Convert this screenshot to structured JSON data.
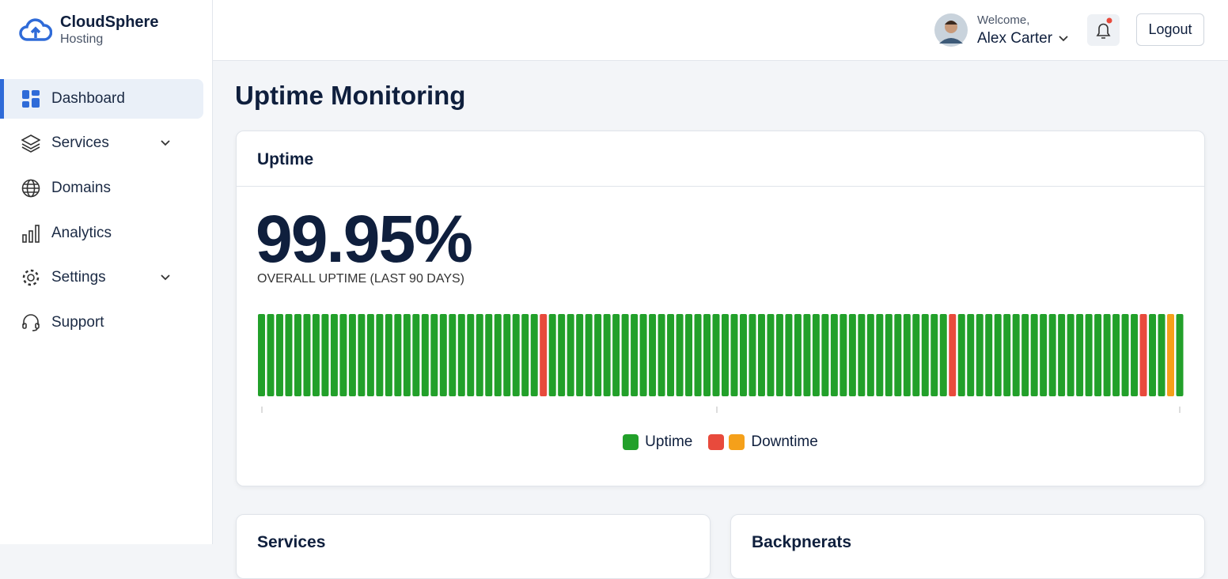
{
  "brand": {
    "name": "CloudSphere",
    "sub": "Hosting"
  },
  "nav": [
    {
      "label": "Dashboard"
    },
    {
      "label": "Services"
    },
    {
      "label": "Domains"
    },
    {
      "label": "Analytics"
    },
    {
      "label": "Settings"
    },
    {
      "label": "Support"
    }
  ],
  "header": {
    "welcome": "Welcome,",
    "user": "Alex Carter",
    "logout": "Logout"
  },
  "page_title": "Uptime Monitoring",
  "uptime_card": {
    "title": "Uptime",
    "value": "99.95%",
    "caption": "OVERALL UPTIME (LAST 90 DAYS)",
    "bar_colors": [
      "#22a02a",
      "#22a02a",
      "#22a02a",
      "#22a02a",
      "#22a02a",
      "#22a02a",
      "#22a02a",
      "#22a02a",
      "#22a02a",
      "#22a02a",
      "#22a02a",
      "#22a02a",
      "#22a02a",
      "#22a02a",
      "#22a02a",
      "#22a02a",
      "#22a02a",
      "#22a02a",
      "#22a02a",
      "#22a02a",
      "#22a02a",
      "#22a02a",
      "#22a02a",
      "#22a02a",
      "#22a02a",
      "#22a02a",
      "#22a02a",
      "#22a02a",
      "#22a02a",
      "#22a02a",
      "#22a02a",
      "#e84a3c",
      "#22a02a",
      "#22a02a",
      "#22a02a",
      "#22a02a",
      "#22a02a",
      "#22a02a",
      "#22a02a",
      "#22a02a",
      "#22a02a",
      "#22a02a",
      "#22a02a",
      "#22a02a",
      "#22a02a",
      "#22a02a",
      "#22a02a",
      "#22a02a",
      "#22a02a",
      "#22a02a",
      "#22a02a",
      "#22a02a",
      "#22a02a",
      "#22a02a",
      "#22a02a",
      "#22a02a",
      "#22a02a",
      "#22a02a",
      "#22a02a",
      "#22a02a",
      "#22a02a",
      "#22a02a",
      "#22a02a",
      "#22a02a",
      "#22a02a",
      "#22a02a",
      "#22a02a",
      "#22a02a",
      "#22a02a",
      "#22a02a",
      "#22a02a",
      "#22a02a",
      "#22a02a",
      "#22a02a",
      "#22a02a",
      "#22a02a",
      "#e84a3c",
      "#22a02a",
      "#22a02a",
      "#22a02a",
      "#22a02a",
      "#22a02a",
      "#22a02a",
      "#22a02a",
      "#22a02a",
      "#22a02a",
      "#22a02a",
      "#22a02a",
      "#22a02a",
      "#22a02a",
      "#22a02a",
      "#22a02a",
      "#22a02a",
      "#22a02a",
      "#22a02a",
      "#22a02a",
      "#22a02a",
      "#e84a3c",
      "#22a02a",
      "#22a02a",
      "#f5a01a",
      "#22a02a"
    ],
    "legend": [
      {
        "label": "Uptime",
        "colors": [
          "#22a02a"
        ]
      },
      {
        "label": "Downtime",
        "colors": [
          "#e84a3c",
          "#f5a01a"
        ]
      }
    ]
  },
  "cards": [
    {
      "title": "Services"
    },
    {
      "title": "Backpnerats"
    }
  ]
}
